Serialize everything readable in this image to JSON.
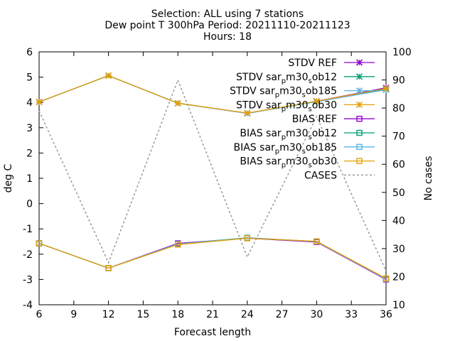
{
  "titles": {
    "line1": "Selection: ALL using      7 stations",
    "line2": "Dew point T 300hPa   Period: 20211110-20211123",
    "line3": "Hours: 18"
  },
  "chart_data": {
    "type": "line",
    "xlabel": "Forecast length",
    "ylabel": "deg C",
    "y2label": "No cases",
    "x_ticks": [
      6,
      9,
      12,
      15,
      18,
      21,
      24,
      27,
      30,
      33,
      36
    ],
    "y_ticks": [
      -4,
      -3,
      -2,
      -1,
      0,
      1,
      2,
      3,
      4,
      5,
      6
    ],
    "y2_ticks": [
      10,
      20,
      30,
      40,
      50,
      60,
      70,
      80,
      90,
      100
    ],
    "xlim": [
      6,
      36
    ],
    "ylim": [
      -4,
      6
    ],
    "y2lim": [
      10,
      100
    ],
    "grid": false,
    "legend_position": "top-right",
    "x": [
      6,
      12,
      18,
      24,
      30,
      36
    ],
    "series": [
      {
        "name": "STDV REF",
        "color": "#9400d3",
        "marker": "x",
        "axis": "y",
        "values": [
          4.02,
          5.06,
          3.97,
          3.57,
          4.05,
          4.58
        ]
      },
      {
        "name": "STDV sar_pm30_sob12",
        "color": "#009e73",
        "marker": "x",
        "axis": "y",
        "values": [
          4.02,
          5.06,
          3.97,
          3.57,
          4.03,
          4.52
        ]
      },
      {
        "name": "STDV sar_pm30_sob185",
        "color": "#56b4e9",
        "marker": "x",
        "axis": "y",
        "values": [
          4.02,
          5.06,
          3.97,
          3.57,
          4.03,
          4.5
        ]
      },
      {
        "name": "STDV sar_pm30_sob30",
        "color": "#e69f00",
        "marker": "x",
        "axis": "y",
        "values": [
          4.02,
          5.06,
          3.97,
          3.58,
          4.05,
          4.55
        ]
      },
      {
        "name": "BIAS REF",
        "color": "#9400d3",
        "marker": "square",
        "axis": "y",
        "values": [
          -1.57,
          -2.55,
          -1.57,
          -1.37,
          -1.52,
          -3.0
        ]
      },
      {
        "name": "BIAS sar_pm30_sob12",
        "color": "#009e73",
        "marker": "square",
        "axis": "y",
        "values": [
          -1.57,
          -2.55,
          -1.6,
          -1.35,
          -1.5,
          -2.97
        ]
      },
      {
        "name": "BIAS sar_pm30_sob185",
        "color": "#56b4e9",
        "marker": "square",
        "axis": "y",
        "values": [
          -1.57,
          -2.55,
          -1.6,
          -1.36,
          -1.5,
          -2.98
        ]
      },
      {
        "name": "BIAS sar_pm30_sob30",
        "color": "#e69f00",
        "marker": "square",
        "axis": "y",
        "values": [
          -1.57,
          -2.55,
          -1.62,
          -1.37,
          -1.49,
          -2.96
        ]
      },
      {
        "name": "CASES",
        "color": "#999999",
        "marker": "none",
        "dashed": true,
        "axis": "y2",
        "values": [
          79,
          25,
          90,
          27,
          77,
          22
        ]
      }
    ]
  }
}
